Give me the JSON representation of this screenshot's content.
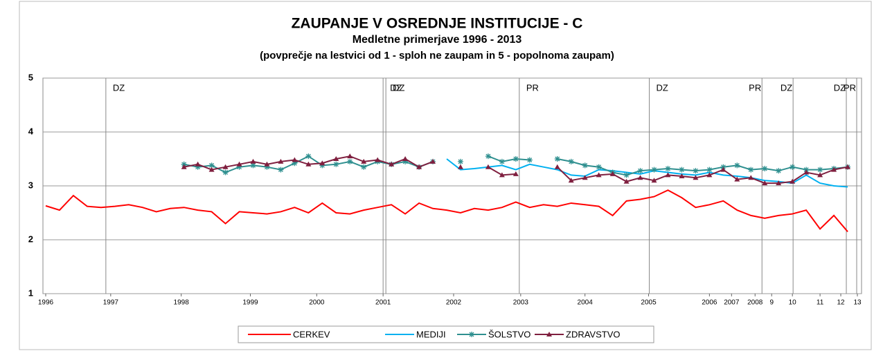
{
  "chart_data": {
    "type": "line",
    "title": "ZAUPANJE V OSREDNJE INSTITUCIJE - C",
    "subtitle": "Medletne primerjave 1996 - 2013",
    "subtitle2": "(povprečje na lestvici od 1 - sploh ne zaupam in 5 - popolnoma zaupam)",
    "x": [
      0,
      2,
      4,
      6,
      8,
      10,
      12,
      14,
      16,
      18,
      20,
      22,
      24,
      26,
      28,
      30,
      32,
      34,
      36,
      38,
      40,
      42,
      44,
      46,
      48,
      50,
      52,
      54,
      56,
      58,
      60,
      62,
      64,
      66,
      68,
      70,
      72,
      74,
      76,
      78,
      80,
      82,
      84,
      86,
      88,
      90,
      92,
      94,
      96,
      98,
      100,
      102,
      104,
      106,
      108,
      110,
      112,
      114,
      116
    ],
    "series": [
      {
        "name": "CERKEV",
        "color": "#ff0000",
        "marker": "none",
        "values": [
          2.63,
          2.55,
          2.82,
          2.62,
          2.6,
          2.62,
          2.65,
          2.6,
          2.52,
          2.58,
          2.6,
          2.55,
          2.52,
          2.3,
          2.52,
          2.5,
          2.48,
          2.52,
          2.6,
          2.5,
          2.68,
          2.5,
          2.48,
          2.55,
          2.6,
          2.65,
          2.48,
          2.68,
          2.58,
          2.55,
          2.5,
          2.58,
          2.55,
          2.6,
          2.7,
          2.6,
          2.65,
          2.62,
          2.68,
          2.65,
          2.62,
          2.45,
          2.72,
          2.75,
          2.8,
          2.92,
          2.78,
          2.6,
          2.65,
          2.72,
          2.55,
          2.45,
          2.4,
          2.45,
          2.48,
          2.55,
          2.2,
          2.45,
          2.15
        ]
      },
      {
        "name": "MEDIJI",
        "color": "#00b0f0",
        "marker": "none",
        "values": [
          null,
          null,
          null,
          null,
          null,
          null,
          null,
          null,
          null,
          null,
          null,
          null,
          null,
          null,
          null,
          null,
          null,
          null,
          null,
          null,
          null,
          null,
          null,
          null,
          null,
          null,
          null,
          null,
          null,
          3.5,
          3.3,
          3.32,
          3.35,
          3.38,
          3.3,
          3.4,
          3.35,
          3.3,
          3.2,
          3.18,
          3.3,
          3.28,
          3.25,
          3.22,
          3.28,
          3.25,
          3.22,
          3.2,
          3.25,
          3.2,
          3.18,
          3.15,
          3.1,
          3.08,
          3.05,
          3.2,
          3.05,
          3.0,
          2.98
        ]
      },
      {
        "name": "ŠOLSTVO",
        "color": "#2e8f8f",
        "marker": "star",
        "values": [
          null,
          null,
          null,
          null,
          null,
          null,
          null,
          null,
          null,
          null,
          3.4,
          3.35,
          3.38,
          3.25,
          3.35,
          3.38,
          3.35,
          3.3,
          3.42,
          3.55,
          3.38,
          3.4,
          3.45,
          3.35,
          3.45,
          3.4,
          3.45,
          3.35,
          3.45,
          null,
          3.45,
          null,
          3.55,
          3.45,
          3.5,
          3.48,
          null,
          3.5,
          3.45,
          3.38,
          3.35,
          3.25,
          3.2,
          3.28,
          3.3,
          3.32,
          3.3,
          3.28,
          3.3,
          3.35,
          3.38,
          3.3,
          3.32,
          3.28,
          3.35,
          3.3,
          3.3,
          3.32,
          3.35
        ]
      },
      {
        "name": "ZDRAVSTVO",
        "color": "#7f1f3f",
        "marker": "triangle",
        "values": [
          null,
          null,
          null,
          null,
          null,
          null,
          null,
          null,
          null,
          null,
          3.35,
          3.4,
          3.3,
          3.35,
          3.4,
          3.45,
          3.4,
          3.45,
          3.48,
          3.4,
          3.42,
          3.5,
          3.55,
          3.45,
          3.48,
          3.4,
          3.5,
          3.35,
          3.45,
          null,
          3.35,
          null,
          3.35,
          3.2,
          3.22,
          null,
          null,
          3.35,
          3.1,
          3.15,
          3.2,
          3.22,
          3.08,
          3.15,
          3.1,
          3.2,
          3.18,
          3.15,
          3.2,
          3.3,
          3.12,
          3.15,
          3.05,
          3.05,
          3.08,
          3.25,
          3.2,
          3.3,
          3.35
        ]
      }
    ],
    "xlim": [
      0,
      118
    ],
    "xticks": [
      {
        "value": 0,
        "label": "1996"
      },
      {
        "value": 9.4,
        "label": "1997"
      },
      {
        "value": 19.6,
        "label": "1998"
      },
      {
        "value": 29.6,
        "label": "1999"
      },
      {
        "value": 39.2,
        "label": "2000"
      },
      {
        "value": 48.8,
        "label": "2001"
      },
      {
        "value": 59,
        "label": "2002"
      },
      {
        "value": 68.7,
        "label": "2003"
      },
      {
        "value": 78,
        "label": "2004"
      },
      {
        "value": 87.2,
        "label": "2005"
      },
      {
        "value": 96,
        "label": "2006"
      },
      {
        "value": 99.2,
        "label": "2007"
      },
      {
        "value": 102.6,
        "label": "2008"
      },
      {
        "value": 105,
        "label": "9"
      },
      {
        "value": 108,
        "label": "10"
      },
      {
        "value": 112,
        "label": "11"
      },
      {
        "value": 115,
        "label": "12"
      },
      {
        "value": 117.4,
        "label": "13"
      }
    ],
    "ylim": [
      1,
      5
    ],
    "yticks": [
      1,
      2,
      3,
      4,
      5
    ],
    "grid": true,
    "annotations": [
      {
        "x": 8.7,
        "label": "DZ"
      },
      {
        "x": 48.8,
        "label": "DZ"
      },
      {
        "x": 49.2,
        "label": "DZ"
      },
      {
        "x": 68.5,
        "label": "PR"
      },
      {
        "x": 87.3,
        "label": "DZ"
      },
      {
        "x": 103.6,
        "label": "PR"
      },
      {
        "x": 108.1,
        "label": "DZ"
      },
      {
        "x": 115.8,
        "label": "DZ"
      },
      {
        "x": 117.3,
        "label": "PR"
      }
    ]
  }
}
